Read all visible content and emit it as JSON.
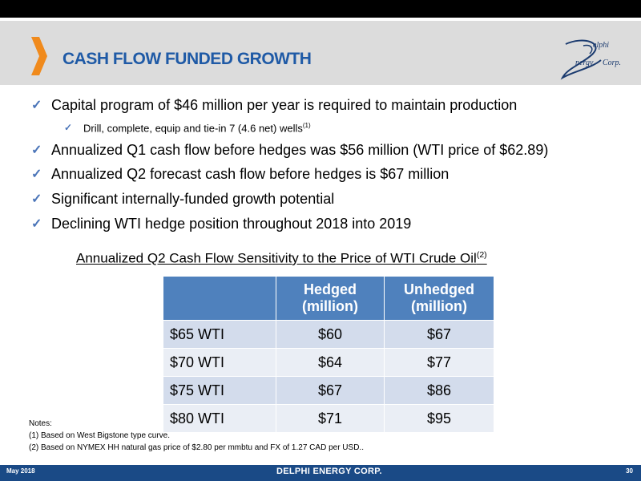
{
  "title": "CASH FLOW FUNDED GROWTH",
  "logo": {
    "line1": "elphi",
    "line2": "nergy",
    "line3": "Corp."
  },
  "bullets": [
    {
      "text": "Capital program of $46 million per year is required to maintain production"
    },
    {
      "text": "Drill, complete, equip and tie-in 7 (4.6 net) wells",
      "sup": "(1)"
    },
    {
      "text": "Annualized Q1 cash flow before hedges was $56 million (WTI price of $62.89)"
    },
    {
      "text": "Annualized Q2 forecast cash flow before hedges is $67 million"
    },
    {
      "text": "Significant internally-funded growth potential"
    },
    {
      "text": "Declining WTI hedge position throughout 2018 into 2019"
    }
  ],
  "table_title": "Annualized Q2 Cash Flow Sensitivity to the Price of WTI Crude Oil",
  "table_title_sup": "(2)",
  "table": {
    "headers": [
      "",
      "Hedged (million)",
      "Unhedged (million)"
    ],
    "header_lines": [
      [
        "",
        ""
      ],
      [
        "Hedged",
        "(million)"
      ],
      [
        "Unhedged",
        "(million)"
      ]
    ],
    "rows": [
      [
        "$65 WTI",
        "$60",
        "$67"
      ],
      [
        "$70 WTI",
        "$64",
        "$77"
      ],
      [
        "$75 WTI",
        "$67",
        "$86"
      ],
      [
        "$80 WTI",
        "$71",
        "$95"
      ]
    ]
  },
  "notes": {
    "heading": "Notes:",
    "items": [
      "(1) Based on West Bigstone type curve.",
      "(2) Based on NYMEX HH natural gas price of $2.80 per mmbtu and FX of 1.27 CAD per USD.."
    ]
  },
  "footer": {
    "date": "May 2018",
    "company": "DELPHI ENERGY CORP.",
    "page": "30"
  },
  "colors": {
    "title": "#1f5aa6",
    "accent": "#f08a1c",
    "header": "#4f81bd",
    "footer": "#1a4a86"
  }
}
